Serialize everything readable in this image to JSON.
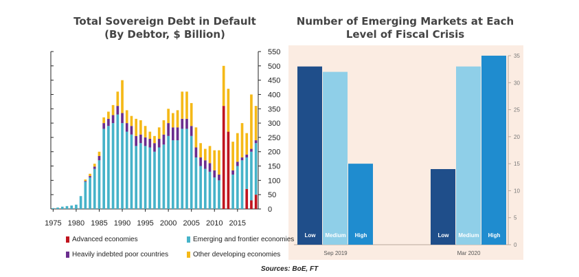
{
  "titles": {
    "left": "Total Sovereign Debt in Default (By Debtor, $ Billion)",
    "left_line1": "Total Sovereign Debt in Default",
    "left_line2": "(By Debtor, $ Billion)",
    "right_line1": "Number of Emerging Markets at Each",
    "right_line2": "Level of Fiscal Crisis"
  },
  "source": "Sources: BoE, FT",
  "colors": {
    "advanced": "#c0141e",
    "emerging": "#46b3c9",
    "hipc": "#6a2e8e",
    "other": "#f5b918",
    "low": "#1f4e8a",
    "medium": "#8fcfe8",
    "high": "#1f8ccf",
    "panel_bg": "#fbece2"
  },
  "chart_data": [
    {
      "type": "bar",
      "stacked": true,
      "title": "Total Sovereign Debt in Default (By Debtor, $ Billion)",
      "ylim": [
        0,
        550
      ],
      "yticks": [
        "0",
        "50",
        "100",
        "150",
        "200",
        "250",
        "300",
        "350",
        "400",
        "450",
        "500",
        "550"
      ],
      "xticks": [
        "1975",
        "1980",
        "1985",
        "1990",
        "1995",
        "2000",
        "2005",
        "2010",
        "2015"
      ],
      "x": [
        1975,
        1976,
        1977,
        1978,
        1979,
        1980,
        1981,
        1982,
        1983,
        1984,
        1985,
        1986,
        1987,
        1988,
        1989,
        1990,
        1991,
        1992,
        1993,
        1994,
        1995,
        1996,
        1997,
        1998,
        1999,
        2000,
        2001,
        2002,
        2003,
        2004,
        2005,
        2006,
        2007,
        2008,
        2009,
        2010,
        2011,
        2012,
        2013,
        2014,
        2015,
        2016,
        2017,
        2018,
        2019
      ],
      "series": [
        {
          "name": "Advanced economies",
          "values": [
            0,
            0,
            0,
            0,
            0,
            0,
            0,
            0,
            0,
            0,
            0,
            0,
            0,
            0,
            0,
            0,
            0,
            0,
            0,
            0,
            0,
            0,
            0,
            0,
            0,
            0,
            0,
            0,
            0,
            0,
            0,
            0,
            0,
            0,
            0,
            0,
            0,
            360,
            270,
            0,
            0,
            0,
            70,
            30,
            50
          ]
        },
        {
          "name": "Emerging and frontier economies",
          "values": [
            3,
            5,
            8,
            10,
            12,
            15,
            45,
            95,
            110,
            140,
            170,
            280,
            290,
            300,
            330,
            300,
            270,
            260,
            220,
            230,
            220,
            215,
            200,
            215,
            225,
            255,
            240,
            240,
            280,
            280,
            255,
            180,
            150,
            140,
            130,
            110,
            100,
            0,
            0,
            120,
            150,
            170,
            110,
            170,
            180
          ]
        },
        {
          "name": "Heavily indebted poor countries",
          "values": [
            0,
            0,
            0,
            0,
            0,
            0,
            0,
            3,
            5,
            8,
            15,
            20,
            25,
            28,
            30,
            35,
            30,
            30,
            35,
            30,
            30,
            30,
            30,
            30,
            35,
            45,
            45,
            45,
            35,
            35,
            35,
            35,
            30,
            30,
            30,
            25,
            20,
            0,
            0,
            15,
            15,
            10,
            10,
            10,
            10
          ]
        },
        {
          "name": "Other developing economies",
          "values": [
            0,
            0,
            0,
            0,
            0,
            0,
            0,
            5,
            8,
            10,
            15,
            20,
            25,
            35,
            50,
            115,
            45,
            35,
            60,
            50,
            40,
            25,
            25,
            40,
            50,
            50,
            50,
            60,
            95,
            95,
            80,
            70,
            50,
            40,
            60,
            70,
            85,
            140,
            150,
            100,
            100,
            120,
            75,
            190,
            120
          ]
        }
      ]
    },
    {
      "type": "bar",
      "title": "Number of Emerging Markets at Each Level of Fiscal Crisis",
      "ylim": [
        0,
        35
      ],
      "yticks": [
        "0",
        "5",
        "10",
        "15",
        "20",
        "25",
        "30",
        "35"
      ],
      "categories": [
        "Sep 2019",
        "Mar 2020"
      ],
      "series": [
        {
          "name": "Low",
          "values": [
            33,
            14
          ]
        },
        {
          "name": "Medium",
          "values": [
            32,
            33
          ]
        },
        {
          "name": "High",
          "values": [
            15,
            35
          ]
        }
      ]
    }
  ]
}
